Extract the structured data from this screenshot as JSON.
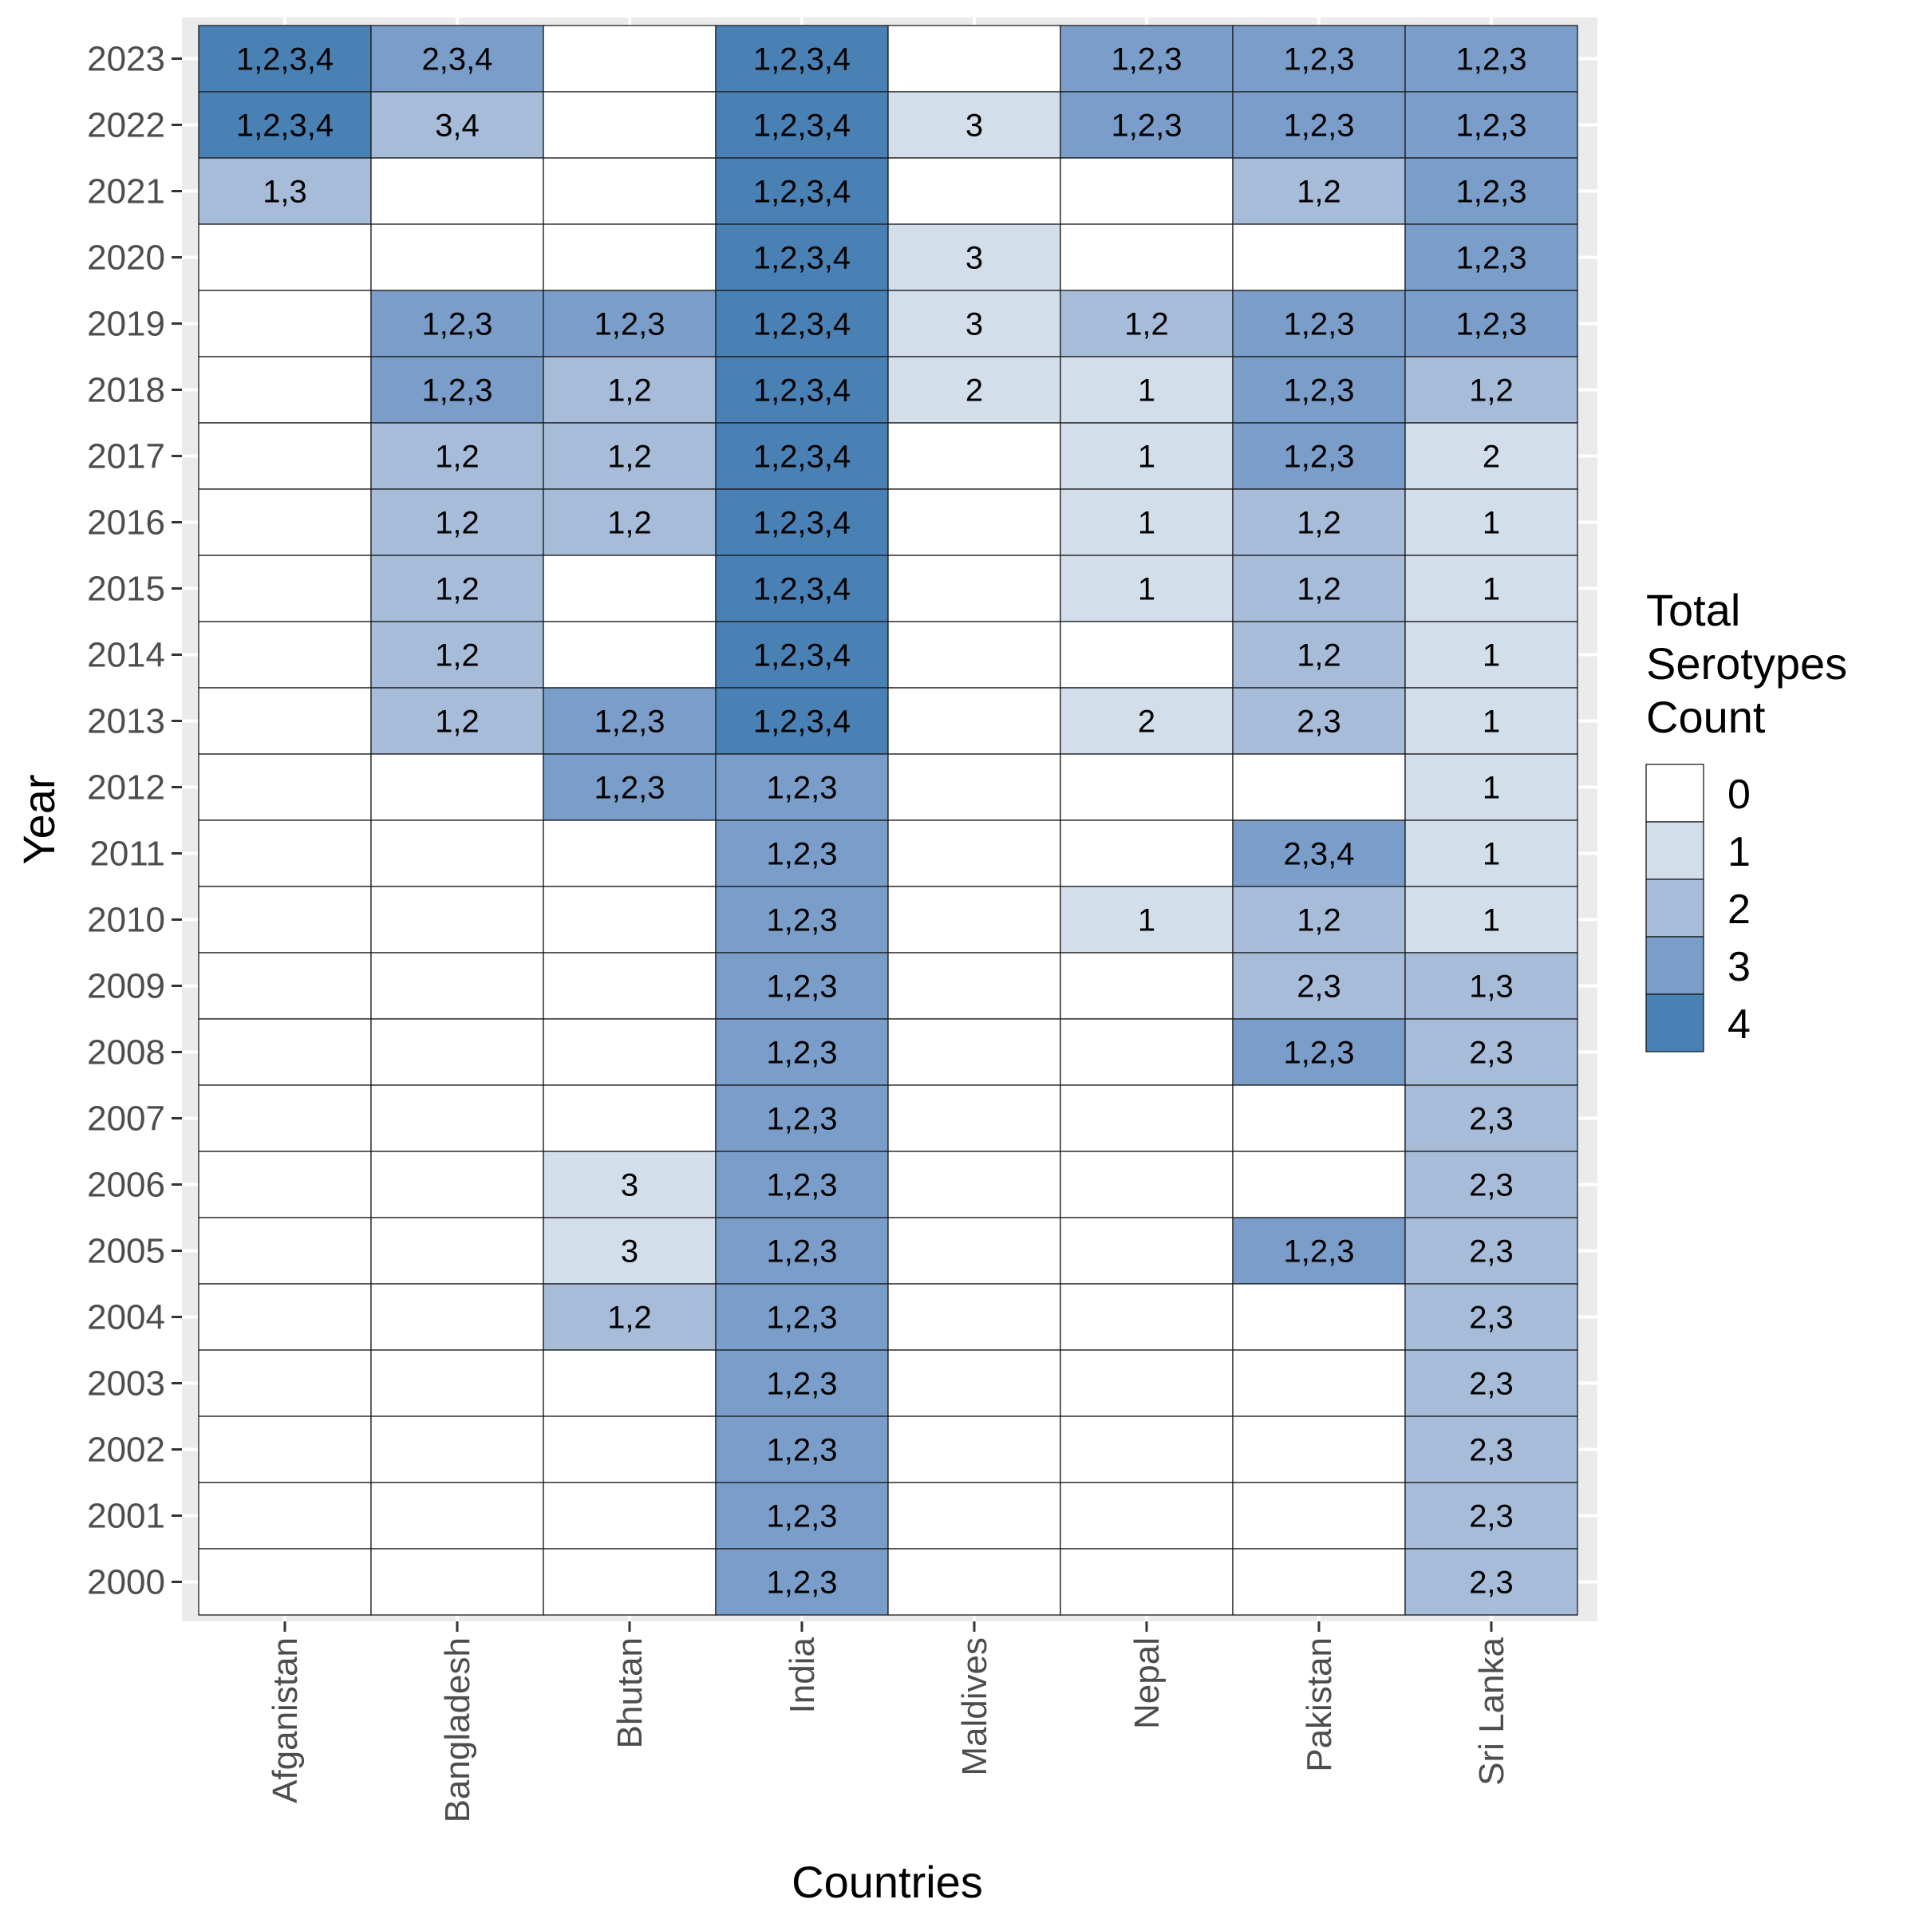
{
  "chart_data": {
    "type": "heatmap",
    "xlabel": "Countries",
    "ylabel": "Year",
    "x_categories": [
      "Afganistan",
      "Bangladesh",
      "Bhutan",
      "India",
      "Maldives",
      "Nepal",
      "Pakistan",
      "Sri Lanka"
    ],
    "y_categories": [
      "2000",
      "2001",
      "2002",
      "2003",
      "2004",
      "2005",
      "2006",
      "2007",
      "2008",
      "2009",
      "2010",
      "2011",
      "2012",
      "2013",
      "2014",
      "2015",
      "2016",
      "2017",
      "2018",
      "2019",
      "2020",
      "2021",
      "2022",
      "2023"
    ],
    "cells_by_year": {
      "2023": [
        "1,2,3,4",
        "2,3,4",
        "",
        "1,2,3,4",
        "",
        "1,2,3",
        "1,2,3",
        "1,2,3"
      ],
      "2022": [
        "1,2,3,4",
        "3,4",
        "",
        "1,2,3,4",
        "3",
        "1,2,3",
        "1,2,3",
        "1,2,3"
      ],
      "2021": [
        "1,3",
        "",
        "",
        "1,2,3,4",
        "",
        "",
        "1,2",
        "1,2,3"
      ],
      "2020": [
        "",
        "",
        "",
        "1,2,3,4",
        "3",
        "",
        "",
        "1,2,3"
      ],
      "2019": [
        "",
        "1,2,3",
        "1,2,3",
        "1,2,3,4",
        "3",
        "1,2",
        "1,2,3",
        "1,2,3"
      ],
      "2018": [
        "",
        "1,2,3",
        "1,2",
        "1,2,3,4",
        "2",
        "1",
        "1,2,3",
        "1,2"
      ],
      "2017": [
        "",
        "1,2",
        "1,2",
        "1,2,3,4",
        "",
        "1",
        "1,2,3",
        "2"
      ],
      "2016": [
        "",
        "1,2",
        "1,2",
        "1,2,3,4",
        "",
        "1",
        "1,2",
        "1"
      ],
      "2015": [
        "",
        "1,2",
        "",
        "1,2,3,4",
        "",
        "1",
        "1,2",
        "1"
      ],
      "2014": [
        "",
        "1,2",
        "",
        "1,2,3,4",
        "",
        "",
        "1,2",
        "1"
      ],
      "2013": [
        "",
        "1,2",
        "1,2,3",
        "1,2,3,4",
        "",
        "2",
        "2,3",
        "1"
      ],
      "2012": [
        "",
        "",
        "1,2,3",
        "1,2,3",
        "",
        "",
        "",
        "1"
      ],
      "2011": [
        "",
        "",
        "",
        "1,2,3",
        "",
        "",
        "2,3,4",
        "1"
      ],
      "2010": [
        "",
        "",
        "",
        "1,2,3",
        "",
        "1",
        "1,2",
        "1"
      ],
      "2009": [
        "",
        "",
        "",
        "1,2,3",
        "",
        "",
        "2,3",
        "1,3"
      ],
      "2008": [
        "",
        "",
        "",
        "1,2,3",
        "",
        "",
        "1,2,3",
        "2,3"
      ],
      "2007": [
        "",
        "",
        "",
        "1,2,3",
        "",
        "",
        "",
        "2,3"
      ],
      "2006": [
        "",
        "",
        "3",
        "1,2,3",
        "",
        "",
        "",
        "2,3"
      ],
      "2005": [
        "",
        "",
        "3",
        "1,2,3",
        "",
        "",
        "1,2,3",
        "2,3"
      ],
      "2004": [
        "",
        "",
        "1,2",
        "1,2,3",
        "",
        "",
        "",
        "2,3"
      ],
      "2003": [
        "",
        "",
        "",
        "1,2,3",
        "",
        "",
        "",
        "2,3"
      ],
      "2002": [
        "",
        "",
        "",
        "1,2,3",
        "",
        "",
        "",
        "2,3"
      ],
      "2001": [
        "",
        "",
        "",
        "1,2,3",
        "",
        "",
        "",
        "2,3"
      ],
      "2000": [
        "",
        "",
        "",
        "1,2,3",
        "",
        "",
        "",
        "2,3"
      ]
    },
    "value_meaning": "count of serotypes listed in each cell",
    "legend": {
      "title_lines": [
        "Total",
        "Serotypes",
        "Count"
      ],
      "levels": [
        0,
        1,
        2,
        3,
        4
      ],
      "colors": [
        "#ffffff",
        "#d3deeb",
        "#a7bcd8",
        "#7a9ec9",
        "#4a81b5"
      ],
      "placement": "right"
    },
    "panel_background": "#ebebeb",
    "grid": true
  }
}
